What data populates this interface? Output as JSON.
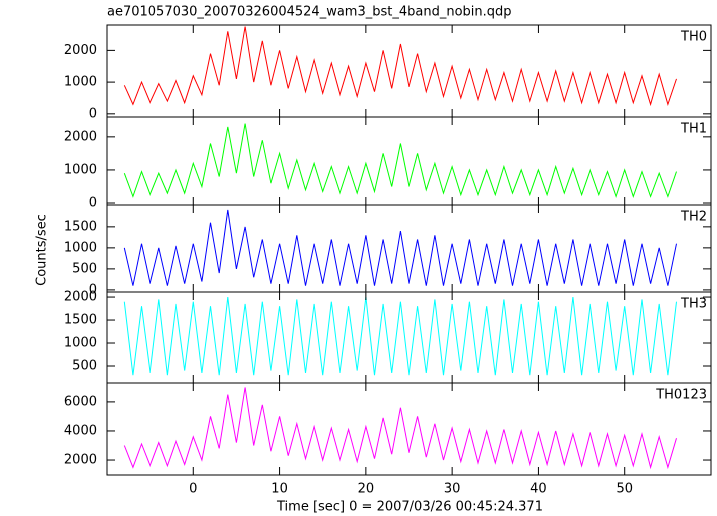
{
  "chart_data": {
    "type": "line",
    "title": "ae701057030_20070326004524_wam3_bst_4band_nobin.qdp",
    "xlabel": "Time [sec] 0 = 2007/03/26 00:45:24.371",
    "ylabel": "Counts/sec",
    "xlim": [
      -10,
      60
    ],
    "xticks": [
      0,
      10,
      20,
      30,
      40,
      50
    ],
    "x": [
      -8,
      -7,
      -6,
      -5,
      -4,
      -3,
      -2,
      -1,
      0,
      1,
      2,
      3,
      4,
      5,
      6,
      7,
      8,
      9,
      10,
      11,
      12,
      13,
      14,
      15,
      16,
      17,
      18,
      19,
      20,
      21,
      22,
      23,
      24,
      25,
      26,
      27,
      28,
      29,
      30,
      31,
      32,
      33,
      34,
      35,
      36,
      37,
      38,
      39,
      40,
      41,
      42,
      43,
      44,
      45,
      46,
      47,
      48,
      49,
      50,
      51,
      52,
      53,
      54,
      55,
      56
    ],
    "series": [
      {
        "name": "TH0",
        "color": "#ff0000",
        "ylim": [
          -100,
          2800
        ],
        "yticks": [
          0,
          1000,
          2000
        ],
        "values": [
          900,
          300,
          1000,
          350,
          950,
          400,
          1050,
          350,
          1200,
          600,
          1900,
          900,
          2600,
          1100,
          2750,
          1000,
          2300,
          900,
          2000,
          800,
          1800,
          700,
          1700,
          650,
          1600,
          600,
          1500,
          550,
          1600,
          700,
          2000,
          800,
          2200,
          850,
          1900,
          700,
          1600,
          550,
          1500,
          500,
          1400,
          450,
          1400,
          450,
          1300,
          400,
          1400,
          400,
          1300,
          400,
          1350,
          400,
          1300,
          350,
          1300,
          350,
          1250,
          350,
          1300,
          350,
          1200,
          300,
          1250,
          300,
          1100
        ]
      },
      {
        "name": "TH1",
        "color": "#00ff00",
        "ylim": [
          -60,
          2600
        ],
        "yticks": [
          0,
          1000,
          2000
        ],
        "values": [
          900,
          200,
          950,
          250,
          900,
          300,
          1000,
          300,
          1200,
          500,
          1800,
          800,
          2300,
          900,
          2400,
          800,
          1900,
          600,
          1500,
          450,
          1300,
          400,
          1200,
          350,
          1100,
          300,
          1100,
          300,
          1200,
          350,
          1500,
          500,
          1800,
          500,
          1500,
          400,
          1200,
          300,
          1100,
          250,
          1000,
          250,
          1000,
          250,
          1100,
          300,
          1000,
          250,
          1000,
          250,
          1100,
          300,
          1050,
          250,
          1000,
          250,
          950,
          200,
          1000,
          200,
          950,
          200,
          900,
          200,
          950
        ]
      },
      {
        "name": "TH2",
        "color": "#0000ff",
        "ylim": [
          -50,
          2020
        ],
        "yticks": [
          0,
          500,
          1000,
          1500
        ],
        "values": [
          1000,
          100,
          1100,
          150,
          1000,
          100,
          1050,
          150,
          1100,
          200,
          1600,
          400,
          1900,
          500,
          1500,
          300,
          1200,
          150,
          1100,
          150,
          1300,
          100,
          1100,
          150,
          1200,
          100,
          1100,
          150,
          1300,
          100,
          1200,
          150,
          1400,
          150,
          1200,
          100,
          1300,
          100,
          1100,
          150,
          1200,
          100,
          1100,
          150,
          1200,
          100,
          1100,
          150,
          1200,
          100,
          1100,
          150,
          1200,
          100,
          1100,
          100,
          1100,
          150,
          1200,
          100,
          1100,
          150,
          1000,
          100,
          1100
        ]
      },
      {
        "name": "TH3",
        "color": "#00ffff",
        "ylim": [
          130,
          2110
        ],
        "yticks": [
          500,
          1000,
          1500,
          2000
        ],
        "values": [
          1900,
          300,
          1800,
          350,
          1950,
          300,
          1850,
          400,
          1900,
          350,
          1800,
          300,
          2000,
          350,
          1850,
          300,
          1900,
          400,
          1800,
          300,
          1950,
          350,
          1850,
          300,
          1900,
          350,
          1800,
          400,
          2000,
          300,
          1850,
          350,
          1900,
          300,
          1800,
          350,
          1950,
          300,
          1850,
          400,
          1900,
          350,
          1800,
          300,
          1950,
          350,
          1850,
          300,
          1900,
          300,
          1800,
          350,
          2000,
          300,
          1850,
          350,
          1900,
          400,
          1800,
          300,
          1950,
          350,
          1850,
          300,
          1900
        ]
      },
      {
        "name": "TH0123",
        "color": "#ff00ff",
        "ylim": [
          970,
          7300
        ],
        "yticks": [
          2000,
          4000,
          6000
        ],
        "values": [
          3000,
          1500,
          3100,
          1600,
          3200,
          1600,
          3300,
          1700,
          3600,
          2000,
          5000,
          2800,
          6500,
          3200,
          7000,
          3000,
          5800,
          2600,
          5000,
          2300,
          4500,
          2100,
          4300,
          2000,
          4200,
          2000,
          4100,
          1900,
          4300,
          2100,
          4900,
          2400,
          5600,
          2500,
          5000,
          2200,
          4500,
          2000,
          4200,
          1900,
          4100,
          1800,
          4000,
          1800,
          4100,
          1800,
          4000,
          1700,
          3900,
          1700,
          4000,
          1700,
          3800,
          1600,
          3900,
          1600,
          3800,
          1600,
          3700,
          1600,
          3800,
          1500,
          3600,
          1500,
          3500
        ]
      }
    ]
  }
}
